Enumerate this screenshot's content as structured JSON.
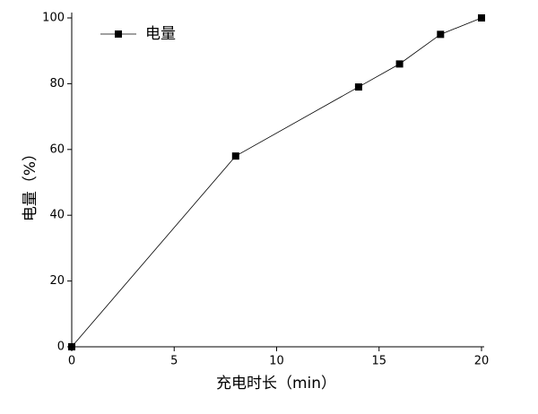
{
  "chart_data": {
    "type": "line",
    "x_label": "充电时长（min）",
    "y_label": "电量（%）",
    "x": [
      0,
      8,
      14,
      16,
      18,
      20
    ],
    "series": [
      {
        "name": "电量",
        "color": "#000000",
        "marker": "square",
        "values": [
          0,
          58,
          79,
          86,
          95,
          100
        ]
      }
    ],
    "xlim": [
      0,
      20
    ],
    "xticks": [
      0,
      5,
      10,
      15,
      20
    ],
    "ylim": [
      0,
      100
    ],
    "yticks": [
      0,
      20,
      40,
      60,
      80,
      100
    ],
    "grid": false,
    "legend": "upper left"
  }
}
